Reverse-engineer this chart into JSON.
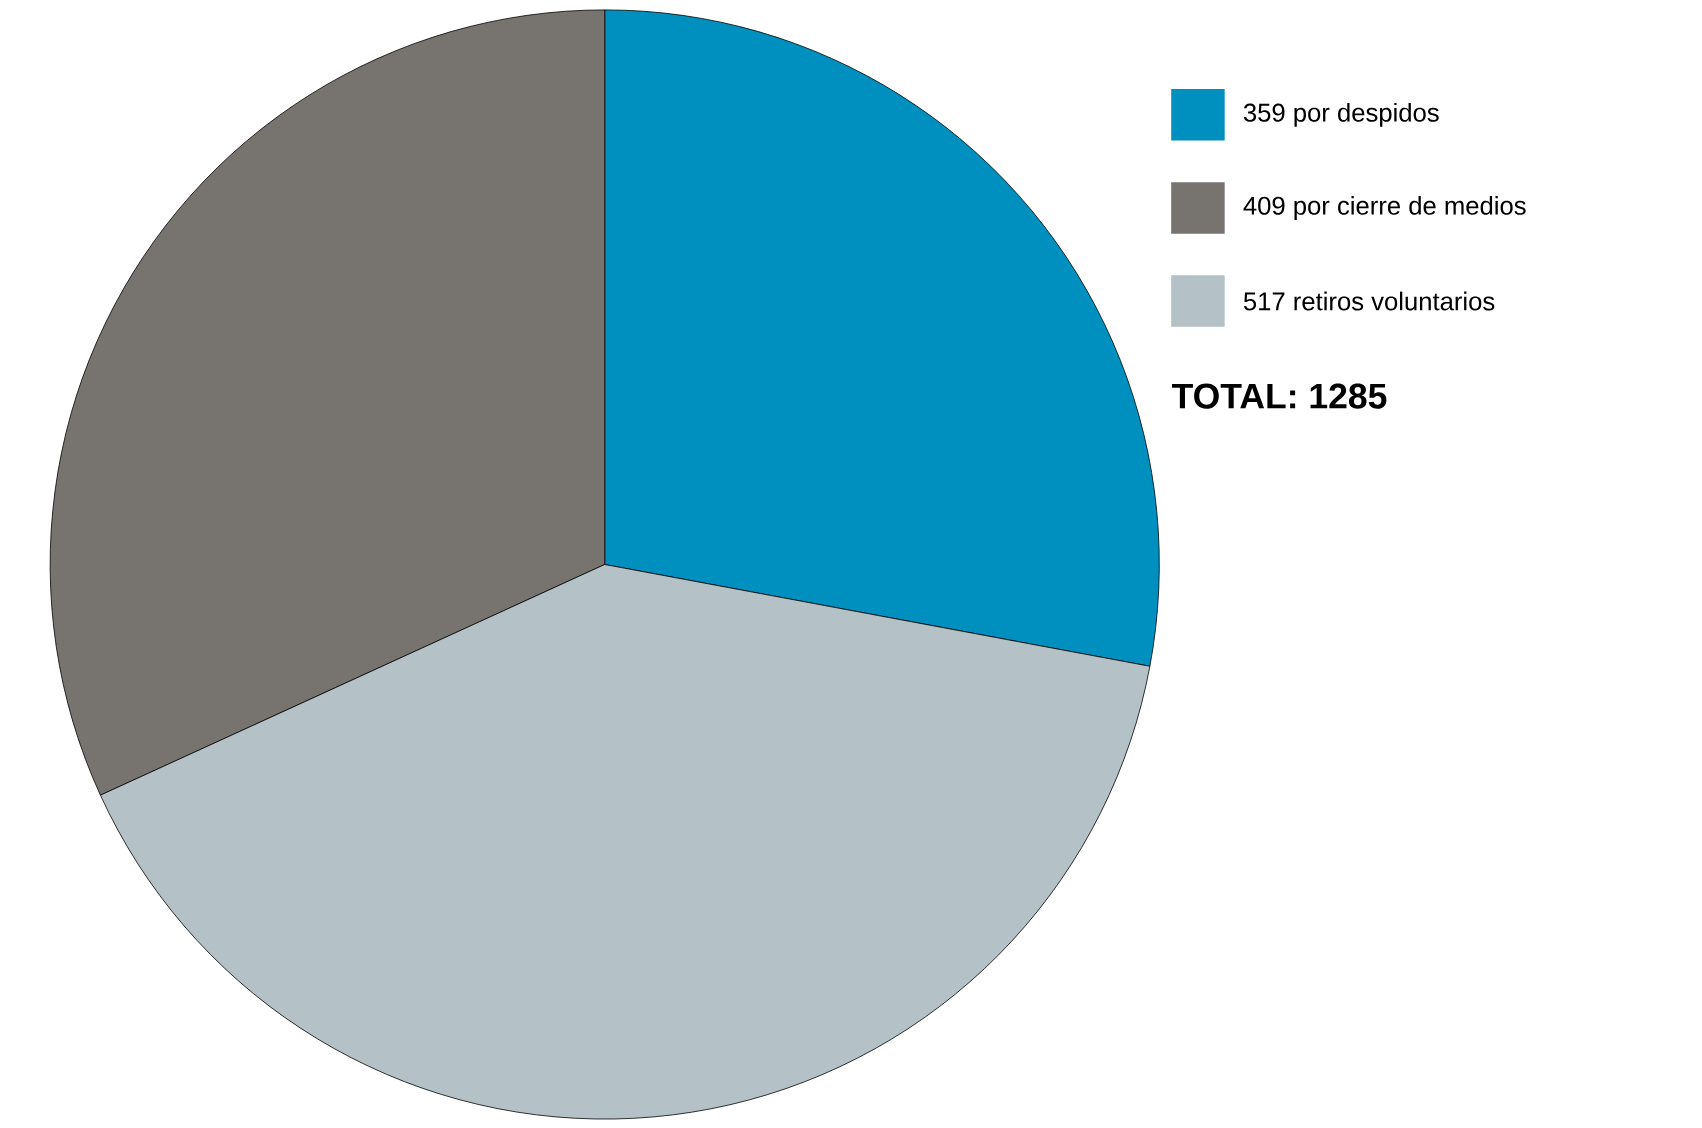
{
  "chart_data": {
    "type": "pie",
    "categories": [
      "359 por despidos",
      "409 por cierre de medios",
      "517 retiros voluntarios"
    ],
    "values": [
      359,
      409,
      517
    ],
    "colors": [
      "#0090c0",
      "#77746f",
      "#b4c1c7"
    ],
    "legend": "top right",
    "annotations": [
      "TOTAL: 1285"
    ]
  }
}
